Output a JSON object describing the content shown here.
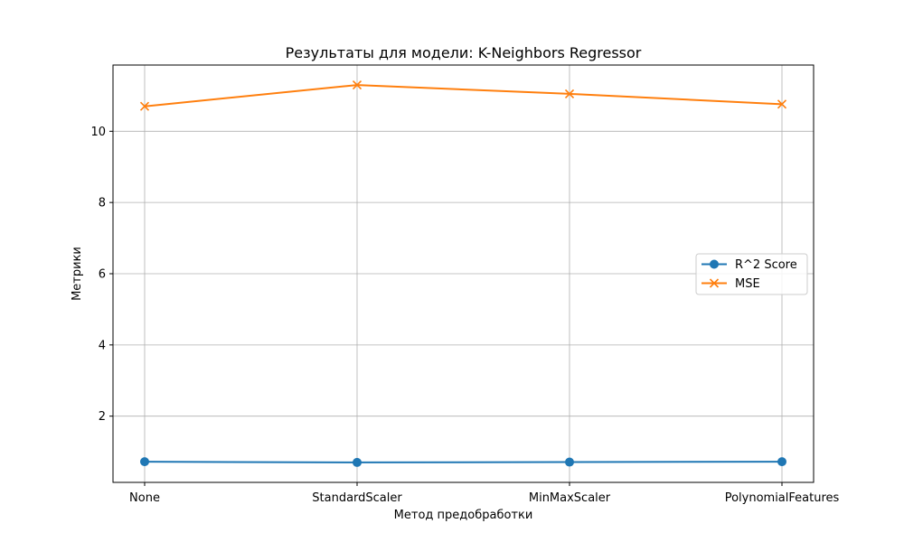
{
  "chart_data": {
    "type": "line",
    "title": "Результаты для модели: K-Neighbors Regressor",
    "xlabel": "Метод предобработки",
    "ylabel": "Метрики",
    "categories": [
      "None",
      "StandardScaler",
      "MinMaxScaler",
      "PolynomialFeatures"
    ],
    "series": [
      {
        "name": "R^2 Score",
        "values": [
          0.72,
          0.7,
          0.71,
          0.72
        ],
        "color": "#1f77b4",
        "marker": "circle"
      },
      {
        "name": "MSE",
        "values": [
          10.7,
          11.3,
          11.05,
          10.76
        ],
        "color": "#ff7f0e",
        "marker": "x"
      }
    ],
    "ylim": [
      0.14,
      11.86
    ],
    "yticks": [
      2,
      4,
      6,
      8,
      10
    ],
    "grid": true,
    "legend_position": "center-right"
  }
}
